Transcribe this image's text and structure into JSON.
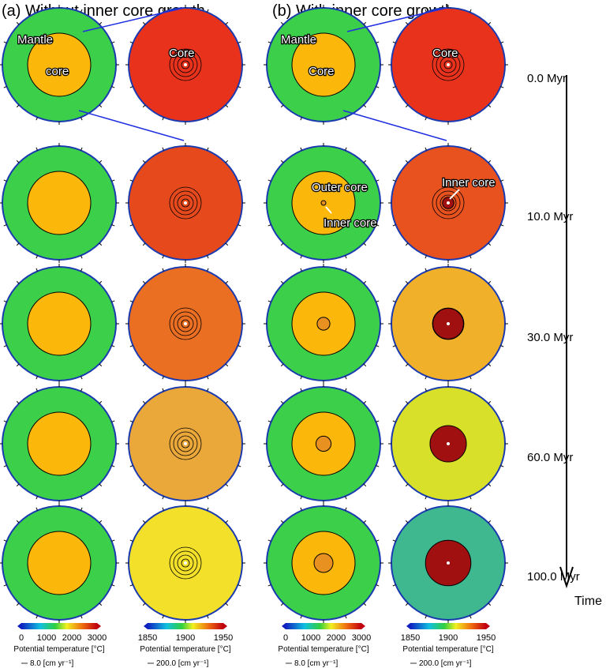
{
  "panels": {
    "a_title": "(a) Without inner core growth",
    "b_title": "(b) With inner core growth"
  },
  "labels": {
    "mantle": "Mantle",
    "core_a": "core",
    "core": "Core",
    "outer_core": "Outer core",
    "inner_core": "Inner core"
  },
  "times": [
    "0.0 Myr",
    "10.0 Myr",
    "30.0 Myr",
    "60.0 Myr",
    "100.0 Myr"
  ],
  "time_axis_label": "Time",
  "core_colors": [
    "#e8321c",
    "#e64a1c",
    "#ea6f22",
    "#eba83a",
    "#f2e02a"
  ],
  "inner_core_growth_colors": [
    "#e8321c",
    "#e8521e",
    "#f0b02a",
    "#d8e02a",
    "#3fb88f"
  ],
  "inner_core_fraction": [
    0,
    0.1,
    0.27,
    0.32,
    0.4
  ],
  "colorbars": [
    {
      "ticks": [
        "0",
        "1000",
        "2000",
        "3000"
      ],
      "label": "Potential temperature [°C]",
      "scale": "8.0 [cm yr⁻¹]"
    },
    {
      "ticks": [
        "1850",
        "1900",
        "1950"
      ],
      "label": "Potential temperature [°C]",
      "scale": "200.0 [cm yr⁻¹]"
    },
    {
      "ticks": [
        "0",
        "1000",
        "2000",
        "3000"
      ],
      "label": "Potential temperature [°C]",
      "scale": "8.0 [cm yr⁻¹]"
    },
    {
      "ticks": [
        "1850",
        "1900",
        "1950"
      ],
      "label": "Potential temperature [°C]",
      "scale": "200.0 [cm yr⁻¹]"
    }
  ],
  "colors": {
    "mantle": "#3ccf4a",
    "core_fill": "#fbb80a",
    "inner_core": "#a01010",
    "rim": "#1a3ab0",
    "arrow": "#2030e0"
  }
}
